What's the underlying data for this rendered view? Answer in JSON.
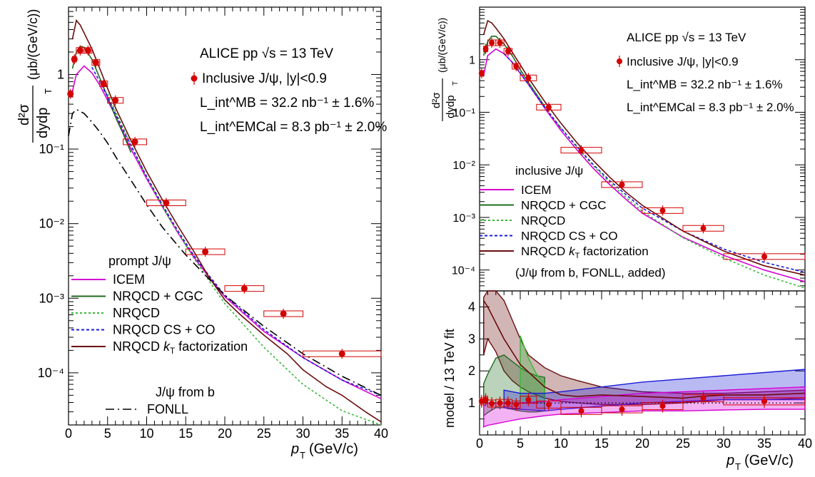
{
  "colors": {
    "data": "#d40000",
    "ICEM": "#d600d6",
    "NRQCD + CGC": "#1f6b1f",
    "NRQCD": "#39b839",
    "NRQCD CS + CO": "#1a1ad6",
    "NRQCD kT factorization": "#6b0d0d",
    "FONLL": "#000000"
  },
  "left": {
    "ylabel_num": "d²σ",
    "ylabel_den": "dydp",
    "ylabel_den_sub": "T",
    "ylabel_unit": "(μb/(GeV/c))",
    "xlabel_main": "p",
    "xlabel_sub": "T",
    "xlabel_unit": "(GeV/c)",
    "title": "ALICE pp √s = 13 TeV",
    "data_label": "Inclusive J/ψ, |y|<0.9",
    "lumi_mb": "L_int^MB = 32.2 nb⁻¹ ± 1.6%",
    "lumi_emc": "L_int^EMCal = 8.3 pb⁻¹ ± 2.0%",
    "legend_title": "prompt J/ψ",
    "legend": [
      "ICEM",
      "NRQCD + CGC",
      "NRQCD",
      "NRQCD CS + CO",
      "NRQCD kT factorization"
    ],
    "legend_b_title": "J/ψ from b",
    "legend_b": "FONLL",
    "xticks": [
      "0",
      "5",
      "10",
      "15",
      "20",
      "25",
      "30",
      "35",
      "40"
    ],
    "yticks": [
      "10⁻⁴",
      "10⁻³",
      "10⁻²",
      "10⁻¹",
      "1"
    ]
  },
  "right": {
    "ylabel_num": "d²σ",
    "ylabel_den": "dydp",
    "ylabel_den_sub": "T",
    "ylabel_unit": "(μb/(GeV/c))",
    "title": "ALICE pp √s = 13 TeV",
    "data_label": "Inclusive J/ψ, |y|<0.9",
    "lumi_mb": "L_int^MB = 32.2 nb⁻¹ ± 1.6%",
    "lumi_emc": "L_int^EMCal = 8.3 pb⁻¹ ± 2.0%",
    "legend_title": "inclusive J/ψ",
    "legend": [
      "ICEM",
      "NRQCD + CGC",
      "NRQCD",
      "NRQCD CS + CO",
      "NRQCD kT factorization"
    ],
    "note": "(J/ψ from b, FONLL, added)",
    "ratio_ylabel": "model / 13 TeV fit",
    "ratio_yticks": [
      "1",
      "2",
      "3",
      "4"
    ],
    "xlabel_main": "p",
    "xlabel_sub": "T",
    "xlabel_unit": "(GeV/c)",
    "xticks": [
      "0",
      "5",
      "10",
      "15",
      "20",
      "25",
      "30",
      "35",
      "40"
    ],
    "yticks": [
      "10⁻⁴",
      "10⁻³",
      "10⁻²",
      "10⁻¹",
      "1"
    ]
  },
  "chart_data": [
    {
      "type": "line",
      "title": "ALICE pp √s = 13 TeV",
      "xlabel": "p_T (GeV/c)",
      "ylabel": "d²σ/dydp_T (μb/(GeV/c))",
      "xlim": [
        0,
        40
      ],
      "ylim": [
        2e-05,
        8
      ],
      "yscale": "log",
      "data_points": {
        "name": "Inclusive J/ψ, |y|<0.9",
        "x": [
          0.25,
          0.75,
          1.5,
          2.5,
          3.5,
          4.5,
          6.0,
          8.5,
          12.5,
          17.5,
          22.5,
          27.5,
          35.0
        ],
        "xerr": [
          0.25,
          0.25,
          0.5,
          0.5,
          0.5,
          0.5,
          1.0,
          1.5,
          2.5,
          2.5,
          2.5,
          2.5,
          5.0
        ],
        "y": [
          0.55,
          1.6,
          2.1,
          2.1,
          1.45,
          0.75,
          0.45,
          0.125,
          0.019,
          0.0042,
          0.00135,
          0.00062,
          0.00018
        ]
      },
      "series": [
        {
          "name": "ICEM",
          "x": [
            0.5,
            1,
            2,
            3,
            4,
            5,
            6,
            8,
            10,
            12,
            14,
            16,
            18,
            20,
            25,
            30,
            35,
            40
          ],
          "y": [
            0.6,
            1.0,
            1.3,
            1.05,
            0.72,
            0.45,
            0.28,
            0.1,
            0.04,
            0.017,
            0.0075,
            0.0036,
            0.0019,
            0.00105,
            0.00036,
            0.00016,
            8e-05,
            4.5e-05
          ]
        },
        {
          "name": "NRQCD + CGC",
          "x": [
            0.5,
            1,
            1.5,
            2,
            3,
            4,
            5,
            6,
            7,
            8
          ],
          "y": [
            1.2,
            2.0,
            2.4,
            2.3,
            1.6,
            0.9,
            0.5,
            0.27,
            0.16,
            0.09
          ]
        },
        {
          "name": "NRQCD",
          "x": [
            5,
            6,
            8,
            10,
            12,
            14,
            16,
            18,
            20,
            25,
            30,
            35,
            40
          ],
          "y": [
            0.55,
            0.32,
            0.115,
            0.042,
            0.017,
            0.0075,
            0.0035,
            0.0017,
            0.00085,
            0.00022,
            7e-05,
            3.1e-05,
            1.8e-05
          ]
        },
        {
          "name": "NRQCD CS + CO",
          "x": [
            3,
            4,
            5,
            6,
            8,
            10,
            12,
            14,
            16,
            18,
            20,
            25,
            30,
            35,
            40
          ],
          "y": [
            1.25,
            0.8,
            0.5,
            0.3,
            0.11,
            0.043,
            0.018,
            0.008,
            0.0038,
            0.002,
            0.0011,
            0.00038,
            0.00016,
            8e-05,
            5e-05
          ]
        },
        {
          "name": "NRQCD kT factorization",
          "x": [
            0.5,
            1,
            1.5,
            2,
            3,
            4,
            5,
            6,
            8,
            10,
            12,
            14,
            16,
            18,
            20,
            22,
            25,
            28,
            30,
            33,
            35,
            38,
            40
          ],
          "y": [
            3.0,
            5.3,
            4.6,
            3.6,
            2.2,
            1.2,
            0.65,
            0.36,
            0.13,
            0.05,
            0.021,
            0.0093,
            0.0043,
            0.0019,
            0.00095,
            0.0006,
            0.00032,
            0.00018,
            0.00011,
            6.5e-05,
            5e-05,
            3e-05,
            2.2e-05
          ]
        },
        {
          "name": "FONLL",
          "x": [
            0,
            0.5,
            1,
            2,
            3,
            4,
            5,
            6,
            8,
            10,
            12,
            15,
            20,
            25,
            30,
            35,
            40
          ],
          "y": [
            0.15,
            0.3,
            0.34,
            0.3,
            0.23,
            0.17,
            0.12,
            0.08,
            0.038,
            0.018,
            0.009,
            0.0038,
            0.0011,
            0.00042,
            0.00018,
            9e-05,
            5e-05
          ]
        }
      ]
    },
    {
      "type": "line",
      "title": "ALICE pp √s = 13 TeV",
      "xlabel": "p_T (GeV/c)",
      "ylabel": "d²σ/dydp_T (μb/(GeV/c))",
      "xlim": [
        0,
        40
      ],
      "ylim": [
        4e-05,
        10
      ],
      "yscale": "log",
      "data_points": {
        "name": "Inclusive J/ψ, |y|<0.9",
        "x": [
          0.25,
          0.75,
          1.5,
          2.5,
          3.5,
          4.5,
          6.0,
          8.5,
          12.5,
          17.5,
          22.5,
          27.5,
          35.0
        ],
        "xerr": [
          0.25,
          0.25,
          0.5,
          0.5,
          0.5,
          0.5,
          1.0,
          1.5,
          2.5,
          2.5,
          2.5,
          2.5,
          5.0
        ],
        "y": [
          0.55,
          1.6,
          2.1,
          2.1,
          1.45,
          0.75,
          0.45,
          0.125,
          0.019,
          0.0042,
          0.00135,
          0.00062,
          0.00018
        ]
      },
      "series": [
        {
          "name": "ICEM",
          "x": [
            0.5,
            1,
            2,
            3,
            4,
            5,
            6,
            8,
            10,
            12,
            14,
            16,
            18,
            20,
            25,
            30,
            35,
            40
          ],
          "y": [
            0.5,
            1.2,
            1.6,
            1.3,
            0.9,
            0.55,
            0.34,
            0.12,
            0.045,
            0.019,
            0.0085,
            0.0042,
            0.0022,
            0.0012,
            0.00042,
            0.00019,
            0.0001,
            6e-05
          ]
        },
        {
          "name": "NRQCD + CGC",
          "x": [
            0.5,
            1,
            1.5,
            2,
            3,
            4,
            5,
            6,
            7,
            8
          ],
          "y": [
            1.2,
            2.2,
            2.8,
            2.8,
            2.0,
            1.2,
            0.65,
            0.37,
            0.22,
            0.13
          ]
        },
        {
          "name": "NRQCD",
          "x": [
            5,
            6,
            8,
            10,
            12,
            14,
            16,
            18,
            20,
            25,
            30,
            35,
            40
          ],
          "y": [
            0.6,
            0.38,
            0.13,
            0.05,
            0.021,
            0.0095,
            0.0046,
            0.0024,
            0.0013,
            0.00041,
            0.00017,
            8e-05,
            4.5e-05
          ]
        },
        {
          "name": "NRQCD CS + CO",
          "x": [
            3,
            4,
            5,
            6,
            8,
            10,
            12,
            14,
            16,
            18,
            20,
            25,
            30,
            35,
            40
          ],
          "y": [
            1.3,
            0.9,
            0.55,
            0.34,
            0.125,
            0.05,
            0.022,
            0.01,
            0.005,
            0.0027,
            0.0015,
            0.00055,
            0.00025,
            0.00014,
            9e-05
          ]
        },
        {
          "name": "NRQCD kT factorization",
          "x": [
            0.5,
            1,
            1.5,
            2,
            3,
            4,
            5,
            6,
            8,
            10,
            12,
            14,
            16,
            18,
            20,
            25,
            30,
            35,
            40
          ],
          "y": [
            3.0,
            5.5,
            5.0,
            4.0,
            2.5,
            1.4,
            0.8,
            0.45,
            0.16,
            0.062,
            0.026,
            0.012,
            0.0058,
            0.003,
            0.0017,
            0.00055,
            0.00023,
            0.00012,
            8e-05
          ]
        }
      ]
    },
    {
      "type": "area",
      "xlabel": "p_T (GeV/c)",
      "ylabel": "model / 13 TeV fit",
      "xlim": [
        0,
        40
      ],
      "ylim": [
        0,
        4.5
      ],
      "data_points": {
        "name": "Inclusive J/ψ, |y|<0.9",
        "x": [
          0.25,
          0.75,
          1.5,
          2.5,
          3.5,
          4.5,
          6.0,
          8.5,
          12.5,
          17.5,
          22.5,
          27.5,
          35.0
        ],
        "y": [
          1.05,
          1.1,
          0.98,
          1.0,
          1.0,
          0.95,
          1.1,
          0.95,
          0.75,
          0.8,
          0.9,
          1.15,
          1.05
        ]
      },
      "series": [
        {
          "name": "NRQCD kT factorization",
          "x": [
            0.5,
            1,
            2,
            3,
            4,
            5,
            6,
            8,
            10,
            12,
            15,
            20,
            25,
            30,
            35,
            40
          ],
          "y_low": [
            2.5,
            3.0,
            2.6,
            2.0,
            1.7,
            1.5,
            1.35,
            1.15,
            1.05,
            1.0,
            0.95,
            0.95,
            1.0,
            1.1,
            1.1,
            1.15
          ],
          "y_high": [
            4.3,
            4.5,
            4.5,
            4.2,
            3.6,
            3.0,
            2.5,
            2.1,
            1.85,
            1.7,
            1.5,
            1.35,
            1.3,
            1.3,
            1.35,
            1.4
          ]
        },
        {
          "name": "NRQCD + CGC",
          "x": [
            0.5,
            1,
            2,
            3,
            4,
            5,
            6,
            7,
            8
          ],
          "y_low": [
            0.6,
            0.7,
            0.85,
            0.85,
            0.8,
            0.75,
            0.72,
            0.72,
            0.75
          ],
          "y_high": [
            1.6,
            1.9,
            2.4,
            2.5,
            2.3,
            2.1,
            1.95,
            1.85,
            1.8
          ]
        },
        {
          "name": "NRQCD",
          "x": [
            5,
            6,
            7,
            8
          ],
          "y_low": [
            1.0,
            1.0,
            1.0,
            1.0
          ],
          "y_high": [
            3.1,
            2.4,
            1.9,
            1.6
          ]
        },
        {
          "name": "NRQCD CS + CO",
          "x": [
            3,
            5,
            8,
            10,
            15,
            20,
            25,
            30,
            35,
            40
          ],
          "y_low": [
            0.85,
            0.8,
            0.75,
            0.8,
            0.9,
            1.0,
            1.05,
            1.1,
            1.1,
            1.1
          ],
          "y_high": [
            1.4,
            1.3,
            1.3,
            1.35,
            1.5,
            1.65,
            1.75,
            1.85,
            1.95,
            2.05
          ]
        },
        {
          "name": "ICEM",
          "x": [
            0.5,
            1,
            2,
            3,
            5,
            8,
            10,
            15,
            20,
            25,
            30,
            35,
            40
          ],
          "y_low": [
            0.25,
            0.3,
            0.35,
            0.4,
            0.5,
            0.6,
            0.65,
            0.7,
            0.75,
            0.75,
            0.78,
            0.8,
            0.8
          ],
          "y_high": [
            0.9,
            1.0,
            1.0,
            1.0,
            1.0,
            1.05,
            1.1,
            1.2,
            1.3,
            1.35,
            1.4,
            1.45,
            1.5
          ]
        },
        {
          "name": "NRQCD kT factorization (central)",
          "x": [
            0.5,
            1,
            2,
            3,
            5,
            8,
            10,
            12,
            15,
            20,
            25,
            27,
            30,
            35,
            40
          ],
          "y": [
            4.2,
            4.0,
            3.5,
            3.0,
            2.2,
            1.5,
            1.25,
            1.2,
            1.25,
            1.2,
            1.15,
            1.2,
            1.25,
            1.25,
            1.3
          ]
        }
      ]
    }
  ]
}
